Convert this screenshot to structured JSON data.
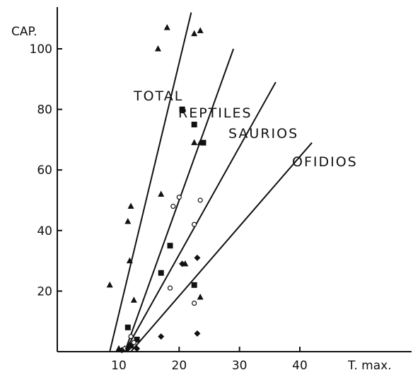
{
  "chart_data": {
    "type": "scatter",
    "xlabel": "T. max.",
    "ylabel": "CAP.",
    "xlim": [
      0,
      46
    ],
    "ylim": [
      0,
      115
    ],
    "xticks": [
      10,
      20,
      30,
      40
    ],
    "yticks": [
      20,
      40,
      60,
      80,
      100
    ],
    "y_tick_labels": [
      "20",
      "40",
      "60",
      "80",
      "100"
    ],
    "x_tick_labels": [
      "10",
      "20",
      "30",
      "40"
    ],
    "grid": false,
    "series": [
      {
        "name": "TOTAL",
        "marker": "triangle",
        "line": {
          "x1": 8.5,
          "y1": 0,
          "x2": 22,
          "y2": 112
        },
        "points": [
          [
            18,
            107
          ],
          [
            22.5,
            105
          ],
          [
            23.5,
            106
          ],
          [
            16.5,
            100
          ],
          [
            12,
            48
          ],
          [
            11.5,
            43
          ],
          [
            17,
            52
          ],
          [
            11.8,
            30
          ],
          [
            8.5,
            22
          ],
          [
            12.5,
            17
          ],
          [
            21,
            29
          ],
          [
            22.5,
            69
          ],
          [
            23.5,
            69
          ],
          [
            23.5,
            18
          ],
          [
            10,
            1
          ],
          [
            11,
            1
          ]
        ]
      },
      {
        "name": "REPTILES",
        "marker": "square",
        "line": {
          "x1": 11,
          "y1": 0,
          "x2": 29,
          "y2": 100
        },
        "points": [
          [
            20.5,
            80
          ],
          [
            22.5,
            75
          ],
          [
            24,
            69
          ],
          [
            18.5,
            35
          ],
          [
            17,
            26
          ],
          [
            22.5,
            22
          ],
          [
            11.5,
            8
          ],
          [
            12,
            2
          ],
          [
            13,
            4
          ]
        ]
      },
      {
        "name": "SAURIOS",
        "marker": "circle",
        "line": {
          "x1": 11,
          "y1": 0,
          "x2": 36,
          "y2": 89
        },
        "points": [
          [
            20,
            51
          ],
          [
            23.5,
            50
          ],
          [
            19,
            48
          ],
          [
            22.5,
            42
          ],
          [
            18.5,
            21
          ],
          [
            22.5,
            16
          ],
          [
            12,
            5
          ],
          [
            12.5,
            3
          ],
          [
            11,
            1
          ]
        ]
      },
      {
        "name": "OFIDIOS",
        "marker": "diamond",
        "line": {
          "x1": 12,
          "y1": 0,
          "x2": 42,
          "y2": 69
        },
        "points": [
          [
            23,
            31
          ],
          [
            20.5,
            29
          ],
          [
            23,
            6
          ],
          [
            17,
            5
          ],
          [
            13,
            1
          ],
          [
            12,
            2
          ],
          [
            11.5,
            1
          ],
          [
            10.5,
            0.5
          ]
        ]
      }
    ]
  }
}
